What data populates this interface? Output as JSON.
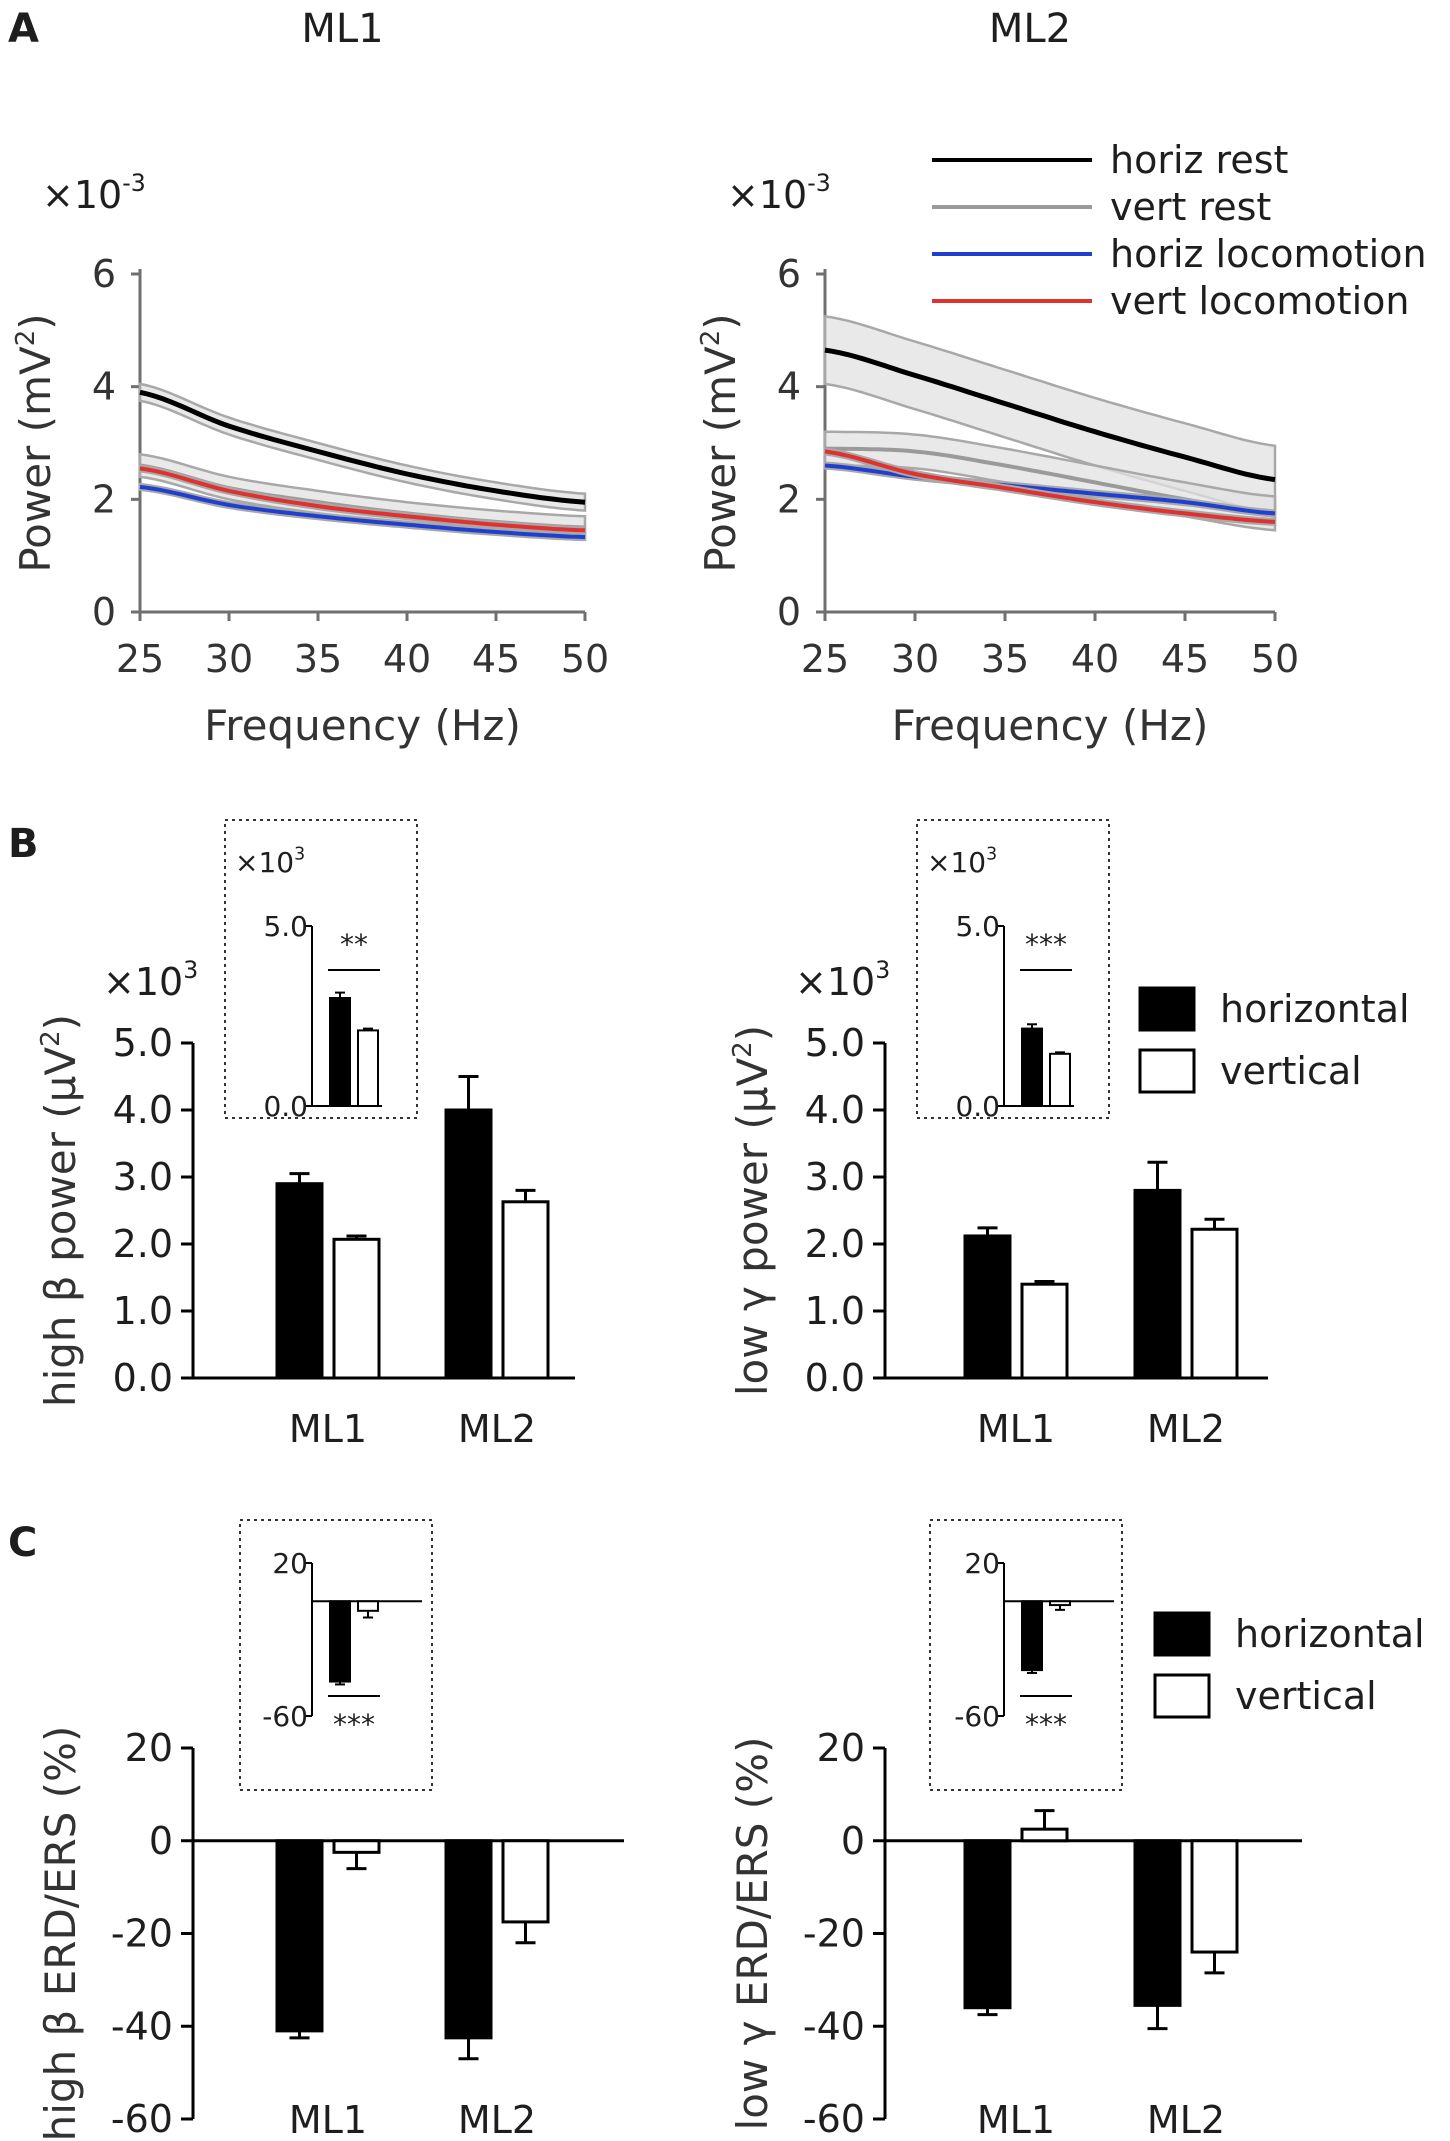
{
  "chart_data": [
    {
      "id": "A_ML1",
      "type": "line",
      "panel_letter": "A",
      "title": "ML1",
      "xlabel": "Frequency (Hz)",
      "ylabel": "Power (mV²)",
      "ylabel_main": "Power (mV",
      "ylabel_sup": "2",
      "ylabel_close": ")",
      "y_multiplier_base": "×10",
      "y_multiplier_exp": "-3",
      "x": [
        25,
        30,
        35,
        40,
        45,
        50
      ],
      "xticks": [
        "25",
        "30",
        "35",
        "40",
        "45",
        "50"
      ],
      "yticks": [
        "0",
        "2",
        "4",
        "6"
      ],
      "xlim": [
        25,
        50
      ],
      "ylim": [
        0,
        6
      ],
      "series": [
        {
          "name": "horiz rest",
          "color": "#000000",
          "values": [
            3.9,
            3.3,
            2.85,
            2.45,
            2.15,
            1.95
          ],
          "band": 0.15
        },
        {
          "name": "vert rest",
          "color": "#9a9a9a",
          "values": [
            2.6,
            2.2,
            1.95,
            1.75,
            1.6,
            1.5
          ],
          "band": 0.2
        },
        {
          "name": "horiz locomotion",
          "color": "#1f3fd0",
          "values": [
            2.22,
            1.9,
            1.7,
            1.55,
            1.42,
            1.33
          ],
          "band": 0.05
        },
        {
          "name": "vert locomotion",
          "color": "#e03030",
          "values": [
            2.55,
            2.15,
            1.88,
            1.7,
            1.55,
            1.45
          ],
          "band": 0.05
        }
      ]
    },
    {
      "id": "A_ML2",
      "type": "line",
      "title": "ML2",
      "xlabel": "Frequency (Hz)",
      "ylabel": "Power (mV²)",
      "ylabel_main": "Power (mV",
      "ylabel_sup": "2",
      "ylabel_close": ")",
      "y_multiplier_base": "×10",
      "y_multiplier_exp": "-3",
      "x": [
        25,
        30,
        35,
        40,
        45,
        50
      ],
      "xticks": [
        "25",
        "30",
        "35",
        "40",
        "45",
        "50"
      ],
      "yticks": [
        "0",
        "2",
        "4",
        "6"
      ],
      "xlim": [
        25,
        50
      ],
      "ylim": [
        0,
        6
      ],
      "legend": [
        "horiz rest",
        "vert rest",
        "horiz locomotion",
        "vert locomotion"
      ],
      "series": [
        {
          "name": "horiz rest",
          "color": "#000000",
          "values": [
            4.65,
            4.2,
            3.7,
            3.2,
            2.75,
            2.35
          ],
          "band": 0.6
        },
        {
          "name": "vert rest",
          "color": "#9a9a9a",
          "values": [
            2.9,
            2.85,
            2.6,
            2.3,
            2.0,
            1.75
          ],
          "band": 0.3
        },
        {
          "name": "horiz locomotion",
          "color": "#1f3fd0",
          "values": [
            2.6,
            2.4,
            2.25,
            2.1,
            1.95,
            1.75
          ],
          "band": 0.05
        },
        {
          "name": "vert locomotion",
          "color": "#e03030",
          "values": [
            2.85,
            2.45,
            2.2,
            1.95,
            1.75,
            1.6
          ],
          "band": 0.05
        }
      ]
    },
    {
      "id": "B_beta",
      "type": "bar",
      "panel_letter": "B",
      "ylabel_pre": "high ",
      "ylabel_greek": "β",
      "ylabel_post": " power (",
      "ylabel_unit": "μV",
      "ylabel_sup": "2",
      "ylabel_close": ")",
      "y_multiplier_base": "×10",
      "y_multiplier_exp": "3",
      "categories": [
        "ML1",
        "ML2"
      ],
      "yticks": [
        "0.0",
        "1.0",
        "2.0",
        "3.0",
        "4.0",
        "5.0"
      ],
      "ylim": [
        0,
        5
      ],
      "series": [
        {
          "name": "horizontal",
          "values": [
            2.9,
            4.0
          ],
          "errors": [
            0.15,
            0.5
          ]
        },
        {
          "name": "vertical",
          "values": [
            2.07,
            2.63
          ],
          "errors": [
            0.05,
            0.17
          ]
        }
      ],
      "inset": {
        "multiplier_base": "×10",
        "multiplier_exp": "3",
        "yticks": [
          "0.0",
          "5.0"
        ],
        "ylim": [
          0,
          5
        ],
        "values": [
          3.0,
          2.1
        ],
        "errors": [
          0.15,
          0.05
        ],
        "significance": "**"
      }
    },
    {
      "id": "B_gamma",
      "type": "bar",
      "ylabel_pre": "low ",
      "ylabel_greek": "γ",
      "ylabel_post": " power (",
      "ylabel_unit": "μV",
      "ylabel_sup": "2",
      "ylabel_close": ")",
      "y_multiplier_base": "×10",
      "y_multiplier_exp": "3",
      "categories": [
        "ML1",
        "ML2"
      ],
      "yticks": [
        "0.0",
        "1.0",
        "2.0",
        "3.0",
        "4.0",
        "5.0"
      ],
      "ylim": [
        0,
        5
      ],
      "legend": [
        "horizontal",
        "vertical"
      ],
      "series": [
        {
          "name": "horizontal",
          "values": [
            2.12,
            2.8
          ],
          "errors": [
            0.12,
            0.42
          ]
        },
        {
          "name": "vertical",
          "values": [
            1.4,
            2.22
          ],
          "errors": [
            0.04,
            0.15
          ]
        }
      ],
      "inset": {
        "multiplier_base": "×10",
        "multiplier_exp": "3",
        "yticks": [
          "0.0",
          "5.0"
        ],
        "ylim": [
          0,
          5
        ],
        "values": [
          2.15,
          1.45
        ],
        "errors": [
          0.12,
          0.04
        ],
        "significance": "***"
      }
    },
    {
      "id": "C_beta",
      "type": "bar",
      "panel_letter": "C",
      "ylabel_pre": "high ",
      "ylabel_greek": "β",
      "ylabel_post": " ERD/ERS (%)",
      "categories": [
        "ML1",
        "ML2"
      ],
      "yticks": [
        "-60",
        "-40",
        "-20",
        "0",
        "20"
      ],
      "ylim": [
        -60,
        20
      ],
      "series": [
        {
          "name": "horizontal",
          "values": [
            -41,
            -42.5
          ],
          "errors": [
            1.5,
            4.5
          ]
        },
        {
          "name": "vertical",
          "values": [
            -2.5,
            -17.5
          ],
          "errors": [
            3.5,
            4.5
          ]
        }
      ],
      "inset": {
        "yticks": [
          "-60",
          "20"
        ],
        "ylim": [
          -60,
          20
        ],
        "values": [
          -42,
          -5
        ],
        "errors": [
          1.5,
          3.5
        ],
        "significance": "***"
      }
    },
    {
      "id": "C_gamma",
      "type": "bar",
      "ylabel_pre": "low ",
      "ylabel_greek": "γ",
      "ylabel_post": " ERD/ERS (%)",
      "categories": [
        "ML1",
        "ML2"
      ],
      "yticks": [
        "-60",
        "-40",
        "-20",
        "0",
        "20"
      ],
      "ylim": [
        -60,
        20
      ],
      "legend": [
        "horizontal",
        "vertical"
      ],
      "series": [
        {
          "name": "horizontal",
          "values": [
            -36,
            -35.5
          ],
          "errors": [
            1.5,
            5
          ]
        },
        {
          "name": "vertical",
          "values": [
            2.5,
            -24
          ],
          "errors": [
            4,
            4.5
          ]
        }
      ],
      "inset": {
        "yticks": [
          "-60",
          "20"
        ],
        "ylim": [
          -60,
          20
        ],
        "values": [
          -36,
          -2
        ],
        "errors": [
          1.5,
          2.5
        ],
        "significance": "***"
      }
    }
  ]
}
